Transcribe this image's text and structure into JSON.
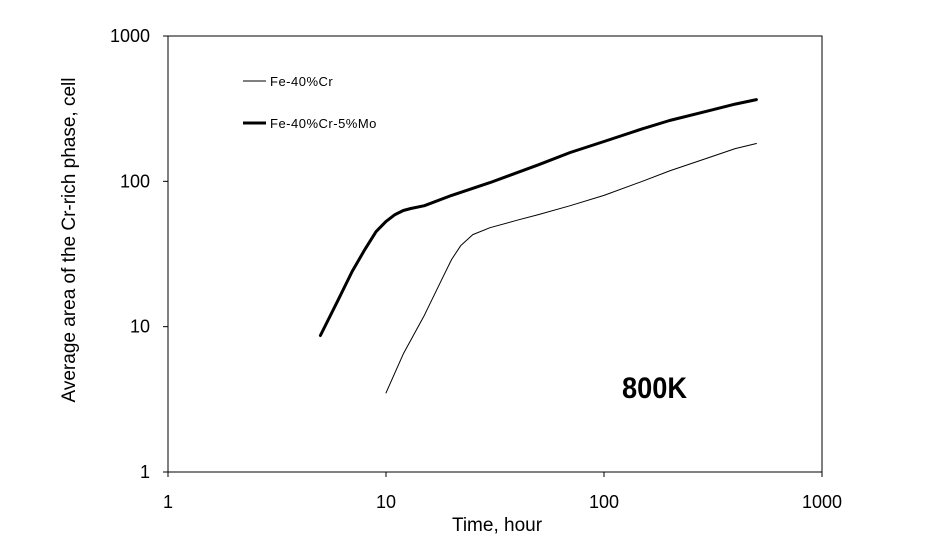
{
  "chart_data": {
    "type": "line",
    "xlabel": "Time, hour",
    "ylabel": "Average area of the Cr-rich phase, cell",
    "xscale": "log",
    "yscale": "log",
    "xlim": [
      1,
      1000
    ],
    "ylim": [
      1,
      1000
    ],
    "xticks": [
      1,
      10,
      100,
      1000
    ],
    "yticks": [
      1,
      10,
      100,
      1000
    ],
    "xtick_labels": [
      "1",
      "10",
      "100",
      "1000"
    ],
    "ytick_labels": [
      "1",
      "10",
      "100",
      "1000"
    ],
    "grid": false,
    "legend_position": "top-left",
    "annotation": "800K",
    "series": [
      {
        "name": "Fe-40%Cr",
        "line": "thin",
        "color": "#000000",
        "x": [
          10,
          12,
          15,
          18,
          20,
          22,
          25,
          30,
          40,
          50,
          70,
          100,
          150,
          200,
          300,
          400,
          500
        ],
        "y": [
          3.5,
          6.5,
          12,
          21,
          29,
          36,
          43,
          48,
          54,
          59,
          68,
          80,
          100,
          118,
          145,
          168,
          182
        ]
      },
      {
        "name": "Fe-40%Cr-5%Mo",
        "line": "thick",
        "color": "#000000",
        "x": [
          5,
          6,
          7,
          8,
          9,
          10,
          11,
          12,
          13,
          15,
          20,
          30,
          50,
          70,
          100,
          150,
          200,
          300,
          400,
          500
        ],
        "y": [
          8.7,
          15,
          24,
          34,
          45,
          53,
          59,
          63,
          65,
          68,
          80,
          98,
          130,
          158,
          188,
          230,
          262,
          305,
          340,
          365
        ]
      }
    ]
  }
}
